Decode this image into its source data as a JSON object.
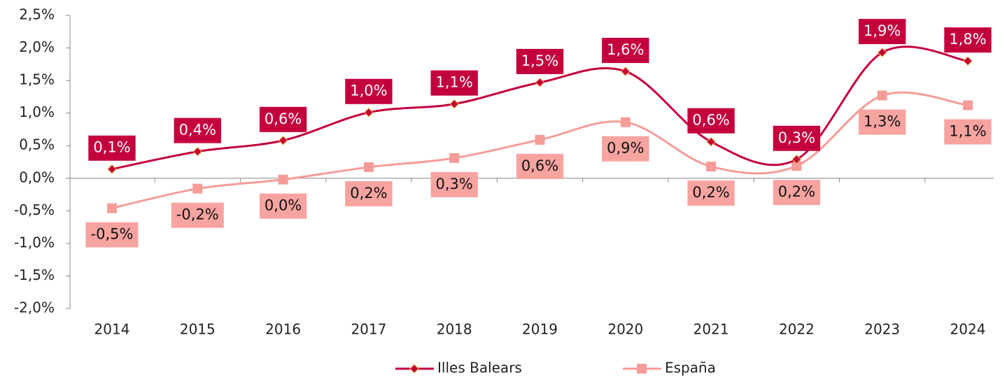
{
  "chart_data": {
    "type": "line",
    "categories": [
      "2014",
      "2015",
      "2016",
      "2017",
      "2018",
      "2019",
      "2020",
      "2021",
      "2022",
      "2023",
      "2024"
    ],
    "series": [
      {
        "name": "Illes Balears",
        "color": "#c4003c",
        "label_color": "#c4003c",
        "label_text_color": "#ffffff",
        "marker": "diamond",
        "label_position": "above",
        "values": [
          0.14,
          0.41,
          0.58,
          1.01,
          1.14,
          1.47,
          1.64,
          0.56,
          0.29,
          1.93,
          1.8
        ],
        "value_labels": [
          "0,1%",
          "0,4%",
          "0,6%",
          "1,0%",
          "1,1%",
          "1,5%",
          "1,6%",
          "0,6%",
          "0,3%",
          "1,9%",
          "1,8%"
        ]
      },
      {
        "name": "España",
        "color": "#f59c98",
        "label_color": "#f7a3a0",
        "label_text_color": "#111111",
        "marker": "square",
        "label_position": "below",
        "values": [
          -0.46,
          -0.16,
          -0.02,
          0.17,
          0.31,
          0.59,
          0.86,
          0.18,
          0.19,
          1.27,
          1.12
        ],
        "value_labels": [
          "-0,5%",
          "-0,2%",
          "0,0%",
          "0,2%",
          "0,3%",
          "0,6%",
          "0,9%",
          "0,2%",
          "0,2%",
          "1,3%",
          "1,1%"
        ]
      }
    ],
    "ylim": [
      -2.0,
      2.5
    ],
    "yticks": [
      {
        "value": -2.0,
        "label": "-2,0%"
      },
      {
        "value": -1.5,
        "label": "-1,5%"
      },
      {
        "value": -1.0,
        "label": "-1,0%"
      },
      {
        "value": -0.5,
        "label": "-0,5%"
      },
      {
        "value": 0,
        "label": "0,0%"
      },
      {
        "value": 0.5,
        "label": "0,5%"
      },
      {
        "value": 1.0,
        "label": "1,0%"
      },
      {
        "value": 1.5,
        "label": "1,5%"
      },
      {
        "value": 2.0,
        "label": "2,0%"
      },
      {
        "value": 2.5,
        "label": "2,5%"
      }
    ],
    "smooth": true,
    "grid": false,
    "legend": "bottom"
  }
}
